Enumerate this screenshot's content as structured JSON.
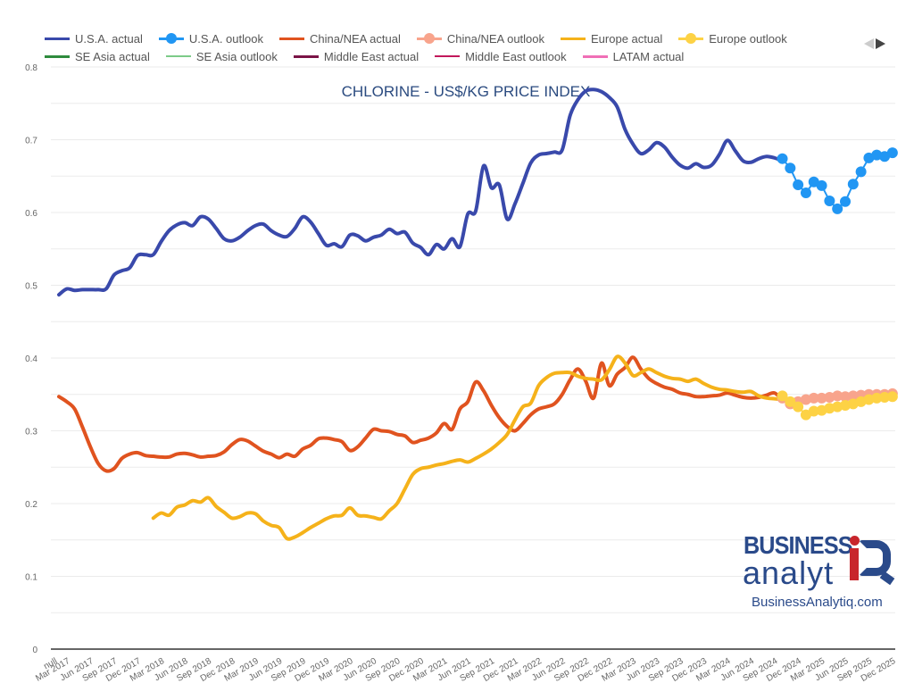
{
  "legend": {
    "items": [
      {
        "label": "U.S.A. actual",
        "color": "#3949ab",
        "style": "line"
      },
      {
        "label": "U.S.A. outlook",
        "color": "#2196f3",
        "style": "dot"
      },
      {
        "label": "China/NEA actual",
        "color": "#e0531f",
        "style": "line"
      },
      {
        "label": "China/NEA outlook",
        "color": "#f8a48c",
        "style": "dot"
      },
      {
        "label": "Europe actual",
        "color": "#f5b21a",
        "style": "line"
      },
      {
        "label": "Europe outlook",
        "color": "#fdd245",
        "style": "dot"
      },
      {
        "label": "SE Asia actual",
        "color": "#2e8b3e",
        "style": "line"
      },
      {
        "label": "SE Asia outlook",
        "color": "#7ccb88",
        "style": "thin"
      },
      {
        "label": "Middle East actual",
        "color": "#7b1346",
        "style": "line"
      },
      {
        "label": "Middle East outlook",
        "color": "#c2185b",
        "style": "thin"
      },
      {
        "label": "LATAM actual",
        "color": "#f06fb6",
        "style": "line"
      }
    ],
    "pager": {
      "prev": "previous-page",
      "next": "next-page"
    }
  },
  "logo": {
    "line1": "BUSINESS",
    "line2": "analyt",
    "url": "BusinessAnalytiq.com"
  },
  "chart_data": {
    "type": "line",
    "title": "CHLORINE - US$/KG PRICE INDEX",
    "xlabel": "",
    "ylabel": "",
    "ylim": [
      0,
      0.8
    ],
    "yticks": [
      "0",
      "0.1",
      "0.2",
      "0.3",
      "0.4",
      "0.5",
      "0.6",
      "0.7",
      "0.8"
    ],
    "grid": true,
    "legend_position": "top",
    "x_start_month": "Feb 2017",
    "x_ticks": [
      "null",
      "Mar 2017",
      "Jun 2017",
      "Sep 2017",
      "Dec 2017",
      "Mar 2018",
      "Jun 2018",
      "Sep 2018",
      "Dec 2018",
      "Mar 2019",
      "Jun 2019",
      "Sep 2019",
      "Dec 2019",
      "Mar 2020",
      "Jun 2020",
      "Sep 2020",
      "Dec 2020",
      "Mar 2021",
      "Jun 2021",
      "Sep 2021",
      "Dec 2021",
      "Mar 2022",
      "Jun 2022",
      "Sep 2022",
      "Dec 2022",
      "Mar 2023",
      "Jun 2023",
      "Sep 2023",
      "Dec 2023",
      "Mar 2024",
      "Jun 2024",
      "Sep 2024",
      "Dec 2024",
      "Mar 2025",
      "Jun 2025",
      "Sep 2025",
      "Dec 2025"
    ],
    "series": [
      {
        "name": "U.S.A. actual",
        "color": "#3949ab",
        "marker": false,
        "start_index": 0,
        "values": [
          0.487,
          0.495,
          0.493,
          0.494,
          0.494,
          0.494,
          0.495,
          0.514,
          0.52,
          0.524,
          0.541,
          0.542,
          0.542,
          0.56,
          0.575,
          0.583,
          0.586,
          0.582,
          0.594,
          0.591,
          0.578,
          0.564,
          0.561,
          0.566,
          0.575,
          0.582,
          0.584,
          0.575,
          0.569,
          0.567,
          0.578,
          0.594,
          0.587,
          0.571,
          0.555,
          0.557,
          0.553,
          0.569,
          0.568,
          0.561,
          0.566,
          0.569,
          0.577,
          0.571,
          0.573,
          0.558,
          0.552,
          0.542,
          0.556,
          0.55,
          0.564,
          0.553,
          0.598,
          0.602,
          0.664,
          0.634,
          0.638,
          0.591,
          0.612,
          0.64,
          0.668,
          0.679,
          0.681,
          0.683,
          0.686,
          0.733,
          0.755,
          0.767,
          0.769,
          0.766,
          0.758,
          0.745,
          0.714,
          0.694,
          0.681,
          0.686,
          0.696,
          0.69,
          0.676,
          0.665,
          0.661,
          0.667,
          0.662,
          0.665,
          0.68,
          0.699,
          0.685,
          0.671,
          0.669,
          0.674,
          0.677,
          0.675,
          0.671
        ]
      },
      {
        "name": "U.S.A. outlook",
        "color": "#2196f3",
        "marker": true,
        "start_index": 92,
        "values": [
          0.674,
          0.661,
          0.638,
          0.627,
          0.642,
          0.637,
          0.616,
          0.605,
          0.615,
          0.639,
          0.656,
          0.675,
          0.679,
          0.677,
          0.682
        ]
      },
      {
        "name": "China/NEA actual",
        "color": "#e0531f",
        "marker": false,
        "start_index": 0,
        "values": [
          0.347,
          0.34,
          0.33,
          0.305,
          0.278,
          0.255,
          0.245,
          0.248,
          0.262,
          0.268,
          0.27,
          0.266,
          0.265,
          0.264,
          0.264,
          0.268,
          0.269,
          0.267,
          0.264,
          0.265,
          0.266,
          0.271,
          0.281,
          0.288,
          0.286,
          0.279,
          0.272,
          0.268,
          0.263,
          0.268,
          0.265,
          0.275,
          0.28,
          0.289,
          0.29,
          0.288,
          0.285,
          0.273,
          0.278,
          0.29,
          0.302,
          0.3,
          0.299,
          0.295,
          0.293,
          0.284,
          0.287,
          0.29,
          0.297,
          0.31,
          0.302,
          0.33,
          0.34,
          0.367,
          0.355,
          0.335,
          0.318,
          0.306,
          0.3,
          0.31,
          0.322,
          0.33,
          0.333,
          0.337,
          0.35,
          0.37,
          0.385,
          0.368,
          0.345,
          0.393,
          0.362,
          0.378,
          0.387,
          0.401,
          0.385,
          0.372,
          0.365,
          0.36,
          0.357,
          0.352,
          0.35,
          0.347,
          0.347,
          0.348,
          0.349,
          0.352,
          0.349,
          0.346,
          0.345,
          0.346,
          0.349,
          0.352,
          0.342
        ]
      },
      {
        "name": "China/NEA outlook",
        "color": "#f8a48c",
        "marker": true,
        "start_index": 92,
        "values": [
          0.345,
          0.337,
          0.34,
          0.343,
          0.345,
          0.345,
          0.346,
          0.348,
          0.347,
          0.348,
          0.349,
          0.35,
          0.35,
          0.35,
          0.351
        ]
      },
      {
        "name": "Europe actual",
        "color": "#f5b21a",
        "marker": false,
        "start_index": 12,
        "values": [
          0.18,
          0.187,
          0.184,
          0.195,
          0.198,
          0.204,
          0.202,
          0.208,
          0.196,
          0.188,
          0.18,
          0.182,
          0.187,
          0.186,
          0.176,
          0.17,
          0.167,
          0.152,
          0.154,
          0.16,
          0.167,
          0.173,
          0.179,
          0.183,
          0.184,
          0.194,
          0.184,
          0.183,
          0.181,
          0.179,
          0.19,
          0.2,
          0.22,
          0.24,
          0.248,
          0.25,
          0.253,
          0.255,
          0.258,
          0.26,
          0.257,
          0.262,
          0.268,
          0.275,
          0.284,
          0.295,
          0.315,
          0.333,
          0.338,
          0.362,
          0.373,
          0.379,
          0.38,
          0.38,
          0.375,
          0.372,
          0.371,
          0.37,
          0.384,
          0.402,
          0.393,
          0.376,
          0.38,
          0.385,
          0.38,
          0.375,
          0.372,
          0.371,
          0.368,
          0.371,
          0.365,
          0.36,
          0.357,
          0.356,
          0.354,
          0.353,
          0.354,
          0.348,
          0.345,
          0.344,
          0.343
        ]
      },
      {
        "name": "Europe outlook",
        "color": "#fdd245",
        "marker": true,
        "start_index": 92,
        "values": [
          0.348,
          0.34,
          0.333,
          0.322,
          0.327,
          0.328,
          0.331,
          0.333,
          0.335,
          0.337,
          0.34,
          0.343,
          0.345,
          0.346,
          0.347
        ]
      },
      {
        "name": "SE Asia actual",
        "color": "#2e8b3e",
        "marker": false,
        "start_index": 0,
        "values": []
      },
      {
        "name": "SE Asia outlook",
        "color": "#7ccb88",
        "marker": false,
        "start_index": 0,
        "values": []
      },
      {
        "name": "Middle East actual",
        "color": "#7b1346",
        "marker": false,
        "start_index": 0,
        "values": []
      },
      {
        "name": "Middle East outlook",
        "color": "#c2185b",
        "marker": false,
        "start_index": 0,
        "values": []
      },
      {
        "name": "LATAM actual",
        "color": "#f06fb6",
        "marker": false,
        "start_index": 0,
        "values": []
      }
    ]
  }
}
